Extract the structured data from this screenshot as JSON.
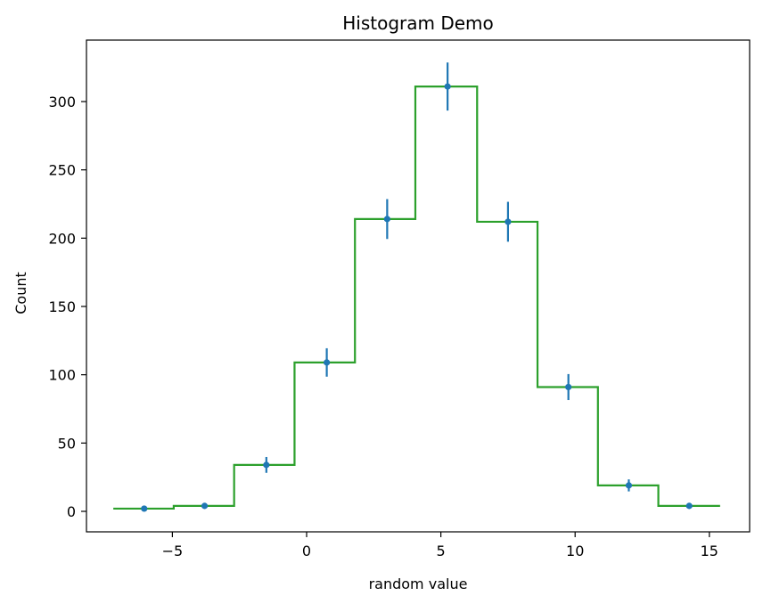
{
  "chart_data": {
    "type": "histogram",
    "title": "Histogram Demo",
    "xlabel": "random value",
    "ylabel": "Count",
    "xlim": [
      -8.2,
      16.5
    ],
    "ylim": [
      -15,
      345
    ],
    "xticks": [
      -5,
      0,
      5,
      10,
      15
    ],
    "xtick_labels": [
      "−5",
      "0",
      "5",
      "10",
      "15"
    ],
    "yticks": [
      0,
      50,
      100,
      150,
      200,
      250,
      300
    ],
    "ytick_labels": [
      "0",
      "50",
      "100",
      "150",
      "200",
      "250",
      "300"
    ],
    "bin_edges": [
      -7.2,
      -4.95,
      -2.7,
      -0.45,
      1.8,
      4.05,
      6.35,
      8.6,
      10.85,
      13.1,
      15.4
    ],
    "counts": [
      2,
      4,
      34,
      109,
      214,
      311,
      212,
      91,
      19,
      4
    ],
    "points": {
      "x": [
        -6.05,
        -3.8,
        -1.5,
        0.75,
        3.0,
        5.25,
        7.5,
        9.75,
        12.0,
        14.25
      ],
      "y": [
        2,
        4,
        34,
        109,
        214,
        311,
        212,
        91,
        19,
        4
      ],
      "yerr": [
        1.4,
        2,
        5.8,
        10.4,
        14.6,
        17.6,
        14.6,
        9.5,
        4.4,
        2
      ]
    },
    "colors": {
      "step": "#2ca02c",
      "points": "#1f77b4"
    },
    "grid": false
  }
}
